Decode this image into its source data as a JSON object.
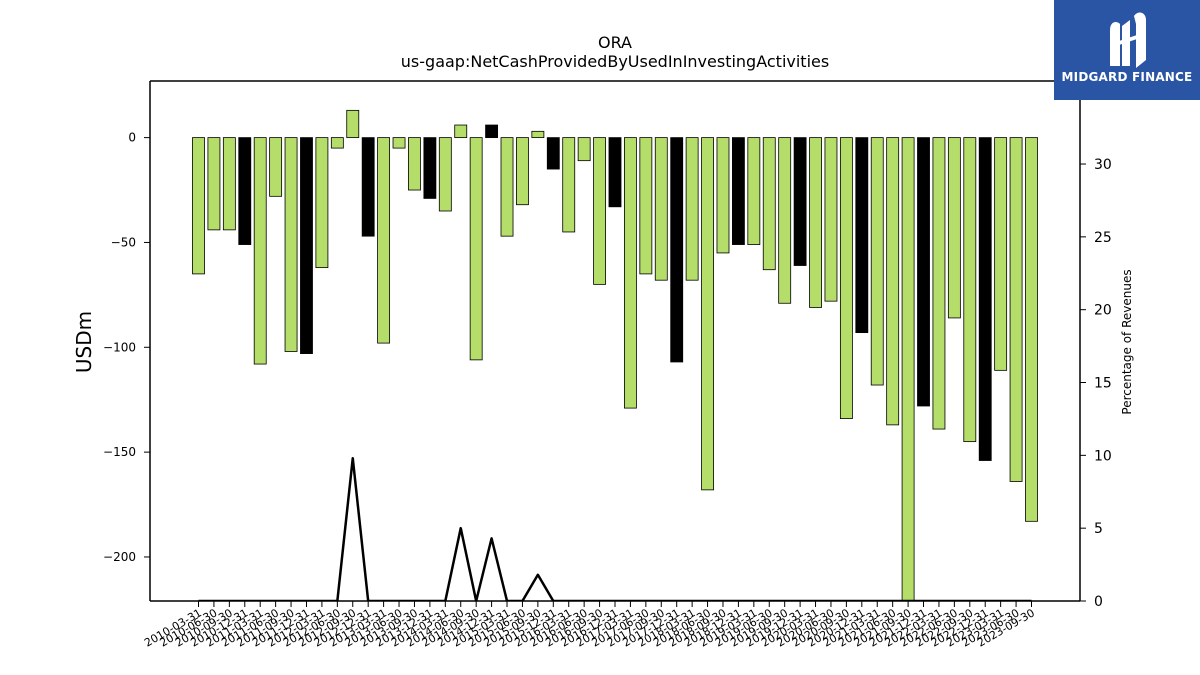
{
  "chart_data": {
    "type": "bar",
    "title": "ORA",
    "subtitle": "us-gaap:NetCashProvidedByUsedInInvestingActivities",
    "ylabel": "USDm",
    "y2label": "Percentage of Revenues",
    "ylim": [
      -221,
      27
    ],
    "y2lim": [
      0,
      35.7
    ],
    "yticks": [
      0,
      -50,
      -100,
      -150,
      -200
    ],
    "y2ticks": [
      0,
      5,
      10,
      15,
      20,
      25,
      30
    ],
    "grid": false,
    "bar_colors": {
      "quarter": "#b5dd6a",
      "year_end": "#000000"
    },
    "categories": [
      "2010-03-31",
      "2010-06-30",
      "2010-09-30",
      "2010-12-31",
      "2011-03-31",
      "2011-06-30",
      "2011-09-30",
      "2011-12-31",
      "2012-03-31",
      "2012-06-30",
      "2012-09-30",
      "2012-12-31",
      "2013-03-31",
      "2013-06-30",
      "2013-09-30",
      "2013-12-31",
      "2014-03-31",
      "2014-06-30",
      "2014-09-30",
      "2014-12-31",
      "2015-03-31",
      "2015-06-30",
      "2015-09-30",
      "2015-12-31",
      "2016-03-31",
      "2016-06-30",
      "2016-09-30",
      "2016-12-31",
      "2017-03-31",
      "2017-06-30",
      "2017-09-30",
      "2017-12-31",
      "2018-03-31",
      "2018-06-30",
      "2018-09-30",
      "2018-12-31",
      "2019-03-31",
      "2019-06-30",
      "2019-09-30",
      "2019-12-31",
      "2020-03-31",
      "2020-06-30",
      "2020-09-30",
      "2020-12-31",
      "2021-03-31",
      "2021-06-30",
      "2021-09-30",
      "2021-12-31",
      "2022-03-31",
      "2022-06-30",
      "2022-09-30",
      "2022-12-31",
      "2023-03-31",
      "2023-06-30",
      "2023-09-30"
    ],
    "values": [
      -65,
      -44,
      -44,
      -51,
      -108,
      -28,
      -102,
      -103,
      -62,
      -5,
      13,
      -47,
      -98,
      -5,
      -25,
      -29,
      -35,
      6,
      -106,
      6,
      -47,
      -32,
      3,
      -15,
      -45,
      -11,
      -70,
      -33,
      -129,
      -65,
      -68,
      -107,
      -68,
      -168,
      -55,
      -51,
      -51,
      -63,
      -79,
      -61,
      -81,
      -78,
      -134,
      -93,
      -118,
      -137,
      -221,
      -128,
      -139,
      -86,
      -145,
      -154,
      -111,
      -164,
      -183
    ],
    "year_end": [
      false,
      false,
      false,
      true,
      false,
      false,
      false,
      true,
      false,
      false,
      false,
      true,
      false,
      false,
      false,
      true,
      false,
      false,
      false,
      true,
      false,
      false,
      false,
      true,
      false,
      false,
      false,
      true,
      false,
      false,
      false,
      true,
      false,
      false,
      false,
      true,
      false,
      false,
      false,
      true,
      false,
      false,
      false,
      true,
      false,
      false,
      false,
      true,
      false,
      false,
      false,
      true,
      false,
      false,
      false
    ],
    "series": [
      {
        "name": "Percentage of Revenues",
        "type": "line",
        "axis": "right",
        "color": "#000000",
        "values": [
          0,
          0,
          0,
          0,
          0,
          0,
          0,
          0,
          0,
          0,
          9.8,
          0,
          0,
          0,
          0,
          0,
          0,
          5.0,
          0,
          4.3,
          0,
          0,
          1.8,
          0,
          0,
          0,
          0,
          0,
          0,
          0,
          0,
          0,
          0,
          0,
          0,
          0,
          0,
          0,
          0,
          0,
          0,
          0,
          0,
          0,
          0,
          0,
          0,
          0,
          0,
          0,
          0,
          0,
          0,
          0,
          0
        ]
      }
    ]
  },
  "logo": {
    "text": "MIDGARD FINANCE"
  }
}
